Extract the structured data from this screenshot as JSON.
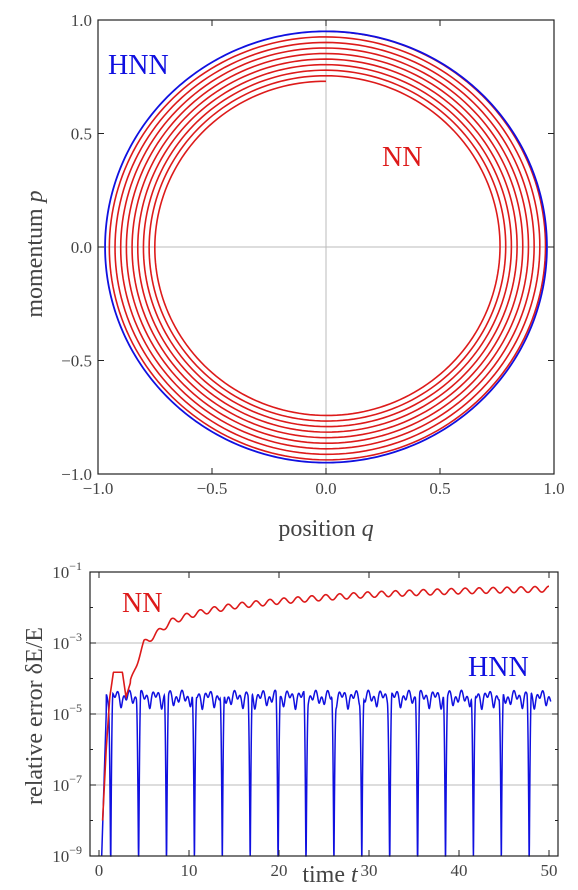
{
  "chart_data": [
    {
      "type": "line",
      "xlabel": "position",
      "xlabel_var": "q",
      "ylabel": "momentum",
      "ylabel_var": "p",
      "xlim": [
        -1.0,
        1.0
      ],
      "ylim": [
        -1.0,
        1.0
      ],
      "x_ticks": [
        "−1.0",
        "−0.5",
        "0.0",
        "0.5",
        "1.0"
      ],
      "y_ticks": [
        "−1.0",
        "−0.5",
        "0.0",
        "0.5",
        "1.0"
      ],
      "grid": "center lines at q=0 and p=0",
      "series": [
        {
          "name": "HNN",
          "color": "#1010e0",
          "shape": "closed orbit",
          "radius": 0.95,
          "loops": 1
        },
        {
          "name": "NN",
          "color": "#dd1a1a",
          "shape": "inward spiral",
          "radius_start": 0.95,
          "radius_end": 0.73,
          "loops": 9
        }
      ],
      "labels": [
        {
          "text": "HNN",
          "color": "#1010e0"
        },
        {
          "text": "NN",
          "color": "#dd1a1a"
        }
      ]
    },
    {
      "type": "line",
      "xlabel": "time",
      "xlabel_var": "t",
      "ylabel": "relative error δE/E",
      "xlim": [
        -1,
        51
      ],
      "yscale": "log",
      "ylim": [
        1e-09,
        0.1
      ],
      "x_ticks": [
        "0",
        "10",
        "20",
        "30",
        "40",
        "50"
      ],
      "y_ticks": [
        {
          "base": "10",
          "exp": "−9",
          "value": 1e-09
        },
        {
          "base": "10",
          "exp": "−7",
          "value": 1e-07
        },
        {
          "base": "10",
          "exp": "−5",
          "value": 1e-05
        },
        {
          "base": "10",
          "exp": "−3",
          "value": 0.001
        },
        {
          "base": "10",
          "exp": "−1",
          "value": 0.1
        }
      ],
      "grid": "horizontal lines at 1e-7, 1e-5, 1e-3",
      "series": [
        {
          "name": "NN",
          "color": "#dd1a1a",
          "x": [
            0.4,
            0.8,
            1.2,
            1.6,
            2.0,
            2.6,
            3.0,
            4,
            5,
            6,
            7,
            8,
            10,
            12,
            15,
            20,
            25,
            30,
            35,
            40,
            45,
            50
          ],
          "y": [
            1e-08,
            1e-06,
            3e-05,
            0.00015,
            0.00015,
            0.00015,
            3e-05,
            0.0002,
            0.001,
            0.0015,
            0.0025,
            0.004,
            0.006,
            0.008,
            0.011,
            0.015,
            0.019,
            0.023,
            0.026,
            0.029,
            0.031,
            0.033
          ]
        },
        {
          "name": "HNN",
          "color": "#1010e0",
          "baseline": 3e-05,
          "peak": 5e-05,
          "dip_period": 3.1,
          "dips_to": 1e-09
        }
      ],
      "labels": [
        {
          "text": "NN",
          "color": "#dd1a1a"
        },
        {
          "text": "HNN",
          "color": "#1010e0"
        }
      ]
    }
  ]
}
